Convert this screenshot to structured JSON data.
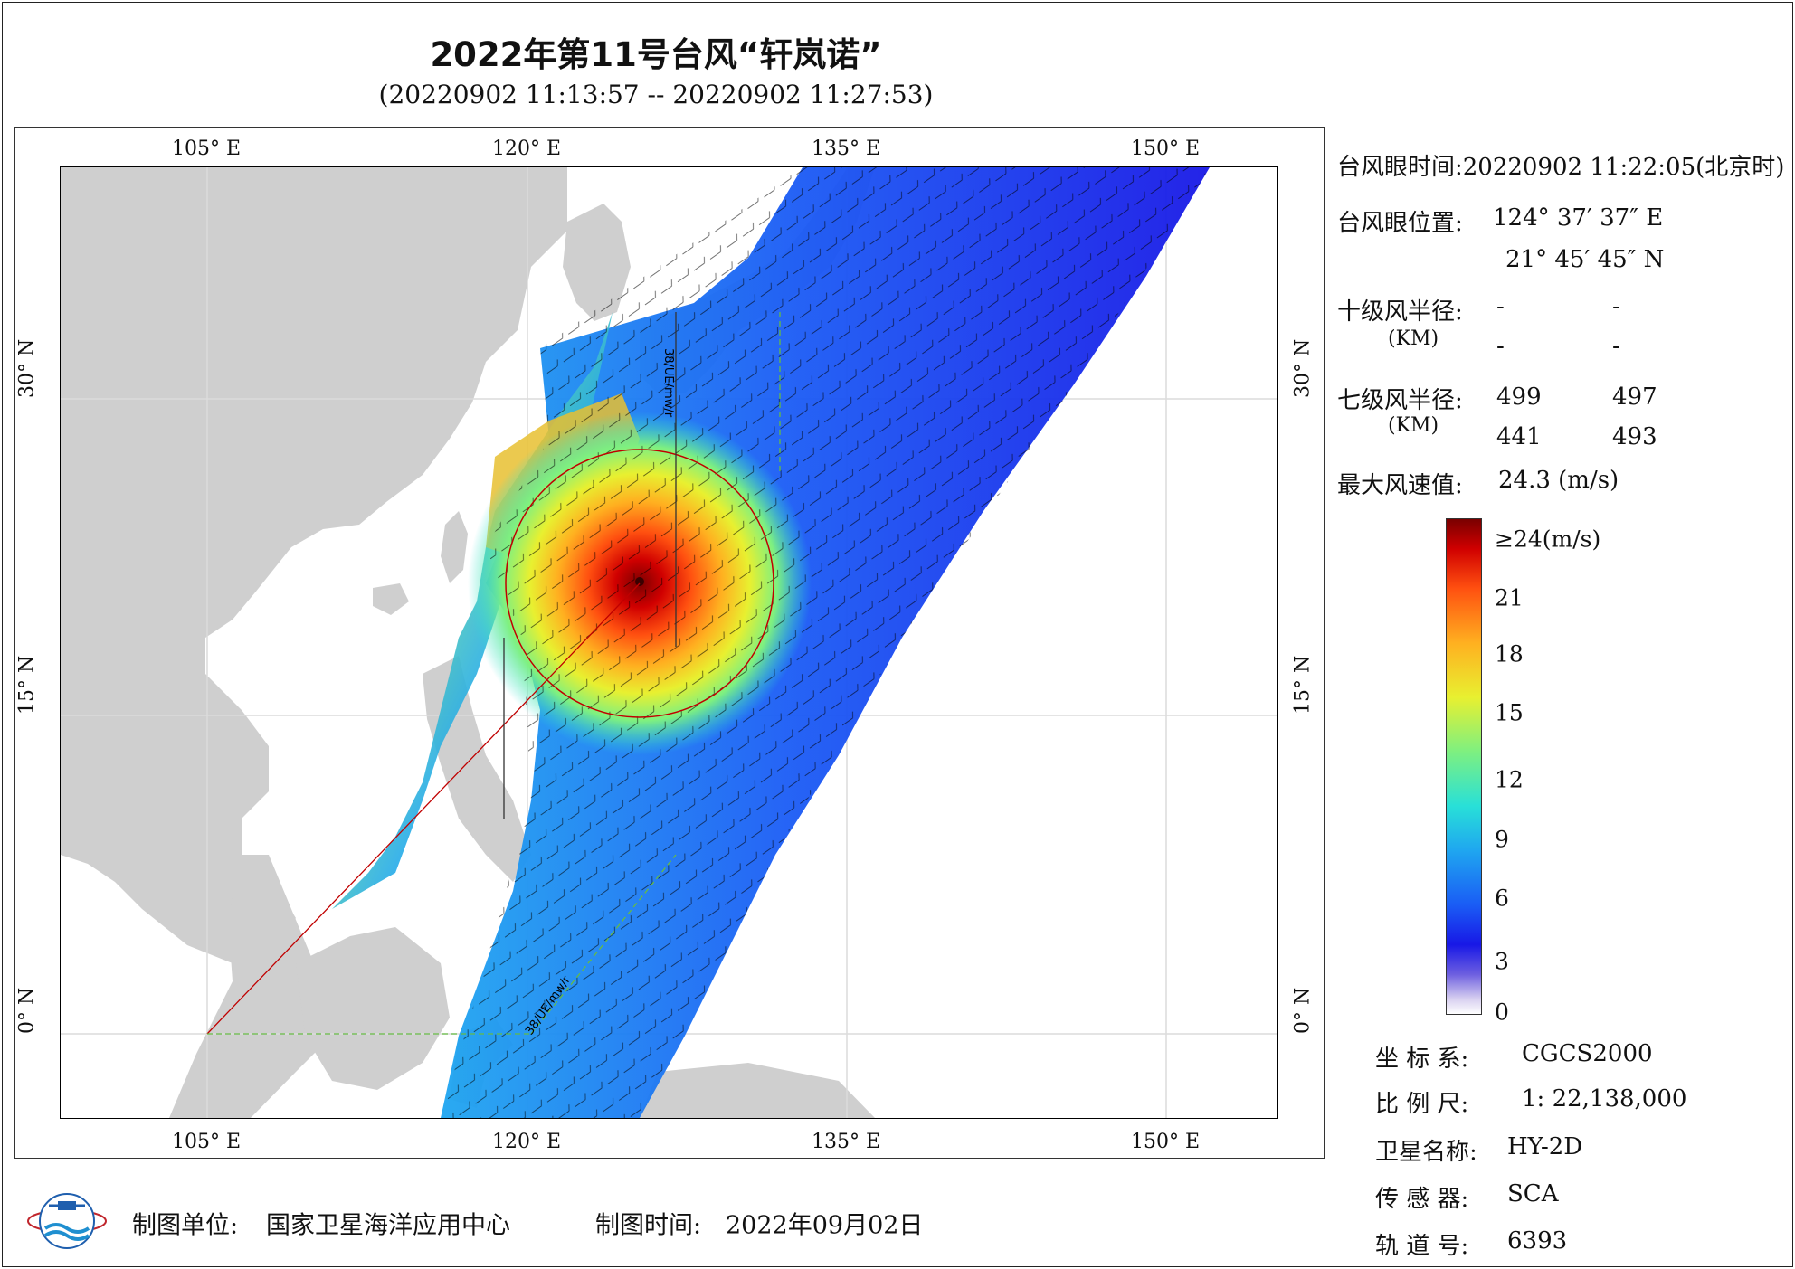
{
  "title": "2022年第11号台风“轩岚诺”",
  "subtitle": "(20220902 11:13:57 -- 20220902 11:27:53)",
  "map": {
    "lon_ticks": [
      "105° E",
      "120° E",
      "135° E",
      "150° E"
    ],
    "lat_ticks": [
      "30° N",
      "15° N",
      "0° N"
    ],
    "track_label_1": "38/UE/mw/r",
    "track_label_2": "38/UE/mw/r"
  },
  "info": {
    "eye_time_label": "台风眼时间:",
    "eye_time_value": "20220902 11:22:05(北京时)",
    "eye_pos_label": "台风眼位置:",
    "eye_lon": "124° 37′ 37″ E",
    "eye_lat": "21° 45′ 45″ N",
    "r10_label": "十级风半径:",
    "r10_unit": "(KM)",
    "r10_values": [
      "-",
      "-",
      "-",
      "-"
    ],
    "r7_label": "七级风半径:",
    "r7_unit": "(KM)",
    "r7_values": [
      "499",
      "497",
      "441",
      "493"
    ],
    "max_wind_label": "最大风速值:",
    "max_wind_value": "24.3  (m/s)"
  },
  "colorbar": {
    "labels": [
      "≥24(m/s)",
      "21",
      "18",
      "15",
      "12",
      "9",
      "6",
      "3",
      "0"
    ]
  },
  "meta": {
    "crs_label": "坐 标 系:",
    "crs_value": "CGCS2000",
    "scale_label": "比 例 尺:",
    "scale_value": "1: 22,138,000",
    "satellite_label": "卫星名称:",
    "satellite_value": "HY-2D",
    "sensor_label": "传 感 器:",
    "sensor_value": "SCA",
    "orbit_label": "轨 道 号:",
    "orbit_value": "6393"
  },
  "footer": {
    "unit_label": "制图单位:",
    "unit_value": "国家卫星海洋应用中心",
    "date_label": "制图时间:",
    "date_value": "2022年09月02日"
  },
  "colors": {
    "land": "#cfcfcf",
    "sea": "#ffffff",
    "track": "#c00000",
    "grid": "#dcdcdc"
  }
}
